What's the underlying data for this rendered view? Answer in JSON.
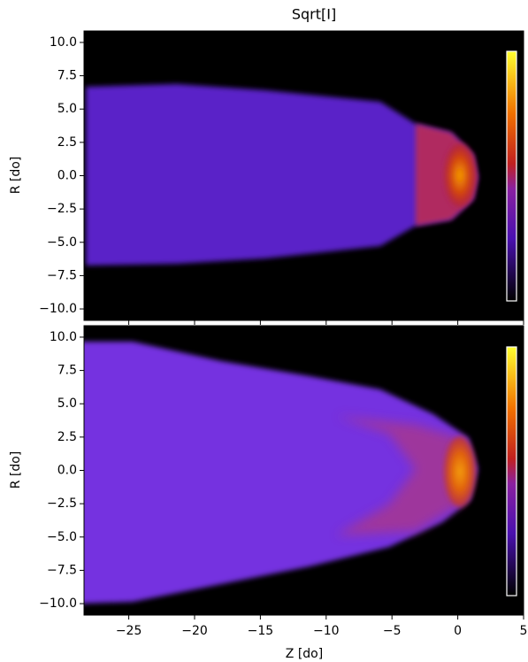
{
  "chart_data": [
    {
      "type": "image",
      "title": "Sqrt[I]",
      "ylabel": "R [do]",
      "xlim": [
        -28.4,
        5
      ],
      "ylim": [
        -10.86,
        10.86
      ],
      "yticks": [
        {
          "value": -10,
          "label": "−10.0"
        },
        {
          "value": -7.5,
          "label": "−7.5"
        },
        {
          "value": -5,
          "label": "−5.0"
        },
        {
          "value": -2.5,
          "label": "−2.5"
        },
        {
          "value": 0,
          "label": "0.0"
        },
        {
          "value": 2.5,
          "label": "2.5"
        },
        {
          "value": 5,
          "label": "5.0"
        },
        {
          "value": 7.5,
          "label": "7.5"
        },
        {
          "value": 10,
          "label": "10.0"
        }
      ]
    },
    {
      "type": "image",
      "xlabel": "Z [do]",
      "ylabel": "R [do]",
      "xlim": [
        -28.4,
        5
      ],
      "ylim": [
        -10.86,
        10.86
      ],
      "xticks": [
        {
          "value": -25,
          "label": "−25"
        },
        {
          "value": -20,
          "label": "−20"
        },
        {
          "value": -15,
          "label": "−15"
        },
        {
          "value": -10,
          "label": "−10"
        },
        {
          "value": -5,
          "label": "−5"
        },
        0,
        5
      ],
      "yticks": [
        {
          "value": -10,
          "label": "−10.0"
        },
        {
          "value": -7.5,
          "label": "−7.5"
        },
        {
          "value": -5,
          "label": "−5.0"
        },
        {
          "value": -2.5,
          "label": "−2.5"
        },
        {
          "value": 0,
          "label": "0.0"
        },
        {
          "value": 2.5,
          "label": "2.5"
        },
        {
          "value": 5,
          "label": "5.0"
        },
        {
          "value": 7.5,
          "label": "7.5"
        },
        {
          "value": 10,
          "label": "10.0"
        }
      ]
    }
  ]
}
